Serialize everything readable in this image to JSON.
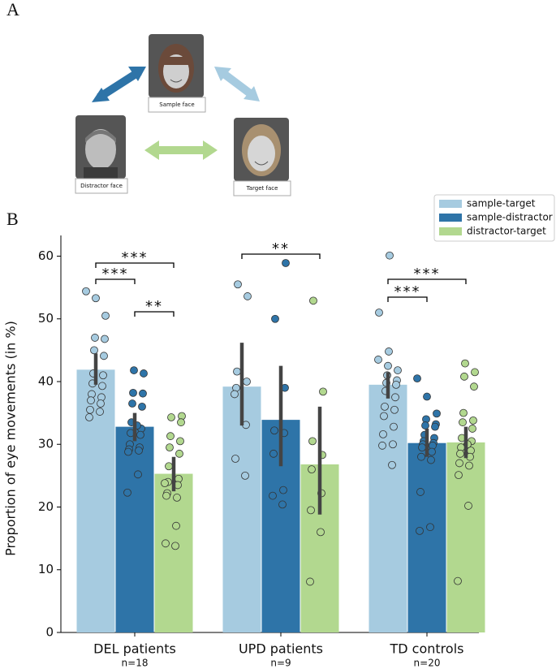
{
  "panel_a": {
    "label": "A",
    "faces": [
      "Sample face",
      "Distractor face",
      "Target face"
    ]
  },
  "chart_data": {
    "type": "bar",
    "panel_label": "B",
    "y_label": "Proportion of eye movements (in %)",
    "categories": [
      "DEL patients",
      "UPD patients",
      "TD controls"
    ],
    "sample_sizes": [
      "n=18",
      "n=9",
      "n=20"
    ],
    "ylim": [
      0,
      63.3
    ],
    "yticks": [
      0,
      10,
      20,
      30,
      40,
      50,
      60
    ],
    "legend": "upper right",
    "series": [
      {
        "name": "sample-target",
        "color": "#a6cbe0",
        "values": [
          41.9,
          39.2,
          39.5
        ],
        "ci_low": [
          39.5,
          33.0,
          37.3
        ],
        "ci_high": [
          44.5,
          46.2,
          41.5
        ],
        "points": [
          [
            54.4,
            53.3,
            50.5,
            47.0,
            46.8,
            45.0,
            44.1,
            41.3,
            41.0,
            39.7,
            39.3,
            38.0,
            37.5,
            37.0,
            36.5,
            35.5,
            35.2,
            34.3
          ],
          [
            55.5,
            53.6,
            41.6,
            40.0,
            39.0,
            33.1,
            27.7,
            25.0,
            38.0
          ],
          [
            60.1,
            51.0,
            44.8,
            43.5,
            42.5,
            41.8,
            41.0,
            40.2,
            39.8,
            39.5,
            38.5,
            37.5,
            36.0,
            35.5,
            34.5,
            32.8,
            31.6,
            30.0,
            29.8,
            26.7
          ]
        ]
      },
      {
        "name": "sample-distractor",
        "color": "#2e74a8",
        "values": [
          32.8,
          33.9,
          30.2
        ],
        "ci_low": [
          30.5,
          26.5,
          28.0
        ],
        "ci_high": [
          35.0,
          42.5,
          32.5
        ],
        "points": [
          [
            41.8,
            41.3,
            38.2,
            38.1,
            36.5,
            36.0,
            33.5,
            32.5,
            31.8,
            31.5,
            30.0,
            29.5,
            29.2,
            29.0,
            28.8,
            25.2,
            22.3,
            33.0
          ],
          [
            58.9,
            50.0,
            39.0,
            32.2,
            31.8,
            28.5,
            22.7,
            21.8,
            20.4
          ],
          [
            40.5,
            37.6,
            34.9,
            34.0,
            33.2,
            33.0,
            32.8,
            31.5,
            31.0,
            30.5,
            30.2,
            30.0,
            29.8,
            29.5,
            28.8,
            28.0,
            27.5,
            22.4,
            16.8,
            16.2
          ]
        ]
      },
      {
        "name": "distractor-target",
        "color": "#b2d88f",
        "values": [
          25.3,
          26.8,
          30.3
        ],
        "ci_low": [
          22.5,
          18.8,
          27.8
        ],
        "ci_high": [
          28.0,
          36.0,
          32.8
        ],
        "points": [
          [
            34.5,
            34.3,
            33.5,
            31.3,
            30.5,
            29.5,
            28.5,
            26.5,
            24.5,
            24.0,
            23.5,
            22.2,
            21.5,
            21.8,
            17.0,
            14.2,
            13.8,
            23.8
          ],
          [
            52.9,
            38.4,
            30.5,
            28.3,
            26.0,
            22.2,
            19.5,
            16.0,
            8.1
          ],
          [
            42.9,
            41.5,
            40.8,
            39.2,
            35.0,
            33.8,
            33.5,
            32.5,
            31.0,
            30.5,
            29.5,
            29.0,
            28.5,
            28.0,
            27.0,
            26.6,
            25.1,
            20.2,
            8.2,
            30.0
          ]
        ]
      }
    ],
    "significance": [
      {
        "category": "DEL patients",
        "pair": [
          "sample-target",
          "distractor-target"
        ],
        "label": "***"
      },
      {
        "category": "DEL patients",
        "pair": [
          "sample-target",
          "sample-distractor"
        ],
        "label": "***"
      },
      {
        "category": "DEL patients",
        "pair": [
          "sample-distractor",
          "distractor-target"
        ],
        "label": "**"
      },
      {
        "category": "UPD patients",
        "pair": [
          "sample-target",
          "distractor-target"
        ],
        "label": "**"
      },
      {
        "category": "TD controls",
        "pair": [
          "sample-target",
          "distractor-target"
        ],
        "label": "***"
      },
      {
        "category": "TD controls",
        "pair": [
          "sample-target",
          "sample-distractor"
        ],
        "label": "***"
      }
    ]
  }
}
